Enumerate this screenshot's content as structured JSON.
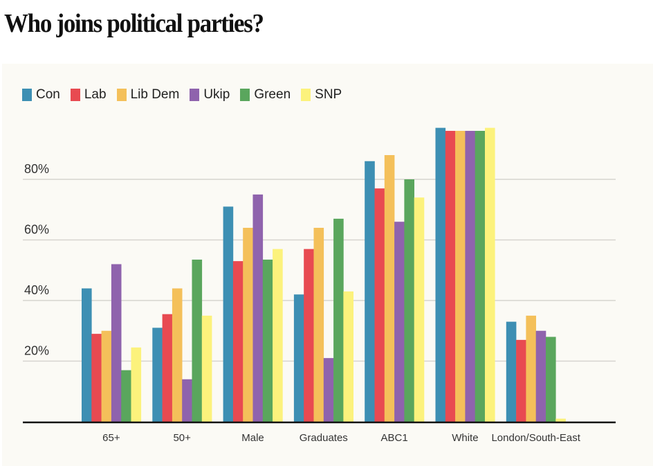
{
  "title": "Who joins political parties?",
  "chart_data": {
    "type": "bar",
    "title": "Who joins political parties?",
    "xlabel": "",
    "ylabel": "",
    "ylim": [
      0,
      100
    ],
    "yticks": [
      20,
      40,
      60,
      80
    ],
    "ytick_labels": [
      "20%",
      "40%",
      "60%",
      "80%"
    ],
    "grid": true,
    "legend_position": "top-left",
    "categories": [
      "65+",
      "50+",
      "Male",
      "Graduates",
      "ABC1",
      "White",
      "London/South-East"
    ],
    "series": [
      {
        "name": "Con",
        "color": "#3d8fb3",
        "values": [
          44,
          31,
          71,
          42,
          86,
          97,
          33
        ]
      },
      {
        "name": "Lab",
        "color": "#e84a51",
        "values": [
          29,
          35.5,
          53,
          57,
          77,
          96,
          27
        ]
      },
      {
        "name": "Lib Dem",
        "color": "#f4c05a",
        "values": [
          30,
          44,
          64,
          64,
          88,
          96,
          35
        ]
      },
      {
        "name": "Ukip",
        "color": "#8f63ad",
        "values": [
          52,
          14,
          75,
          21,
          66,
          96,
          30
        ]
      },
      {
        "name": "Green",
        "color": "#5aa65d",
        "values": [
          17,
          53.5,
          53.5,
          67,
          80,
          96,
          28
        ]
      },
      {
        "name": "SNP",
        "color": "#fcf27c",
        "values": [
          24.5,
          35,
          57,
          43,
          74,
          97,
          1
        ]
      }
    ]
  }
}
